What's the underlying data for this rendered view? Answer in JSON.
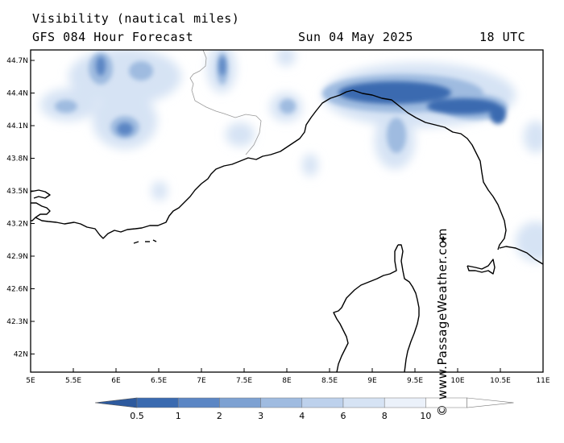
{
  "header": {
    "title": "Visibility (nautical miles)",
    "subtitle": "GFS 084 Hour Forecast",
    "date": "Sun 04 May 2025",
    "time": "18 UTC"
  },
  "credit": "© www.PassageWeather.com",
  "axes": {
    "lat_labels": [
      "44.7N",
      "44.4N",
      "44.1N",
      "43.8N",
      "43.5N",
      "43.2N",
      "42.9N",
      "42.6N",
      "42.3N",
      "42N"
    ],
    "lon_labels": [
      "5E",
      "5.5E",
      "6E",
      "6.5E",
      "7E",
      "7.5E",
      "8E",
      "8.5E",
      "9E",
      "9.5E",
      "10E",
      "10.5E",
      "11E"
    ]
  },
  "legend": {
    "labels": [
      "0.5",
      "1",
      "2",
      "3",
      "4",
      "6",
      "8",
      "10"
    ],
    "colors": [
      "#3a6ab0",
      "#5b86c4",
      "#7da1d2",
      "#9fbbe0",
      "#bdd1ec",
      "#d6e3f4",
      "#ebf1fa",
      "#ffffff"
    ]
  },
  "colors": {
    "land_outline": "#000000",
    "border": "#999999",
    "fog_dark": "#3a6ab0",
    "fog_mid": "#7da1d2",
    "fog_light": "#d6e3f4"
  }
}
